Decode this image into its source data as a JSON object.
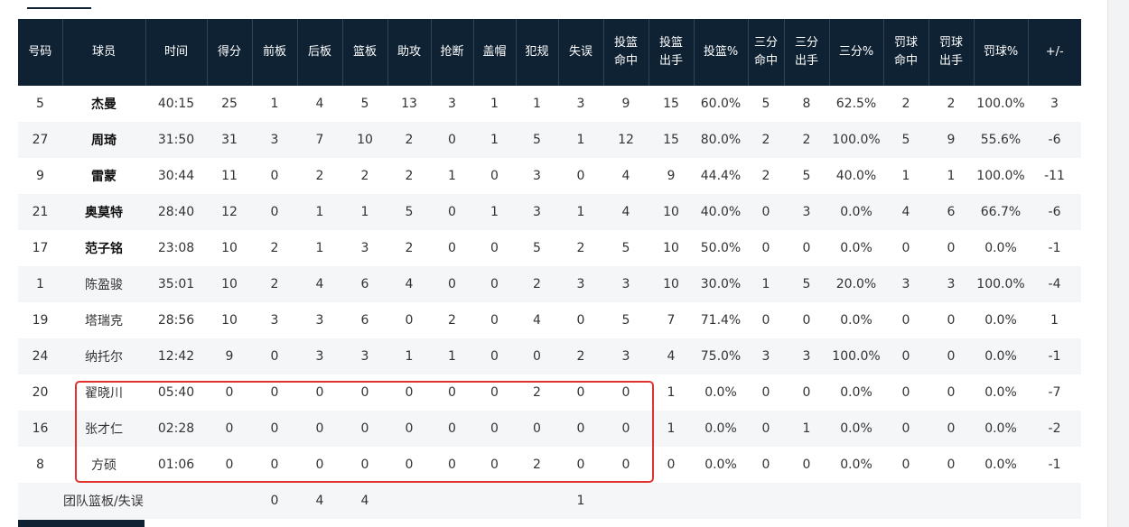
{
  "headers": [
    {
      "line1": "号码",
      "line2": ""
    },
    {
      "line1": "球员",
      "line2": ""
    },
    {
      "line1": "时间",
      "line2": ""
    },
    {
      "line1": "得分",
      "line2": ""
    },
    {
      "line1": "前板",
      "line2": ""
    },
    {
      "line1": "后板",
      "line2": ""
    },
    {
      "line1": "篮板",
      "line2": ""
    },
    {
      "line1": "助攻",
      "line2": ""
    },
    {
      "line1": "抢断",
      "line2": ""
    },
    {
      "line1": "盖帽",
      "line2": ""
    },
    {
      "line1": "犯规",
      "line2": ""
    },
    {
      "line1": "失误",
      "line2": ""
    },
    {
      "line1": "投篮",
      "line2": "命中"
    },
    {
      "line1": "投篮",
      "line2": "出手"
    },
    {
      "line1": "投篮%",
      "line2": ""
    },
    {
      "line1": "三分",
      "line2": "命中"
    },
    {
      "line1": "三分",
      "line2": "出手"
    },
    {
      "line1": "三分%",
      "line2": ""
    },
    {
      "line1": "罚球",
      "line2": "命中"
    },
    {
      "line1": "罚球",
      "line2": "出手"
    },
    {
      "line1": "罚球%",
      "line2": ""
    },
    {
      "line1": "+/-",
      "line2": ""
    }
  ],
  "rows": [
    {
      "starter": true,
      "cells": [
        "5",
        "杰曼",
        "40:15",
        "25",
        "1",
        "4",
        "5",
        "13",
        "3",
        "1",
        "1",
        "3",
        "9",
        "15",
        "60.0%",
        "5",
        "8",
        "62.5%",
        "2",
        "2",
        "100.0%",
        "3"
      ]
    },
    {
      "starter": true,
      "cells": [
        "27",
        "周琦",
        "31:50",
        "31",
        "3",
        "7",
        "10",
        "2",
        "0",
        "1",
        "5",
        "1",
        "12",
        "15",
        "80.0%",
        "2",
        "2",
        "100.0%",
        "5",
        "9",
        "55.6%",
        "-6"
      ]
    },
    {
      "starter": true,
      "cells": [
        "9",
        "雷蒙",
        "30:44",
        "11",
        "0",
        "2",
        "2",
        "2",
        "1",
        "0",
        "3",
        "0",
        "4",
        "9",
        "44.4%",
        "2",
        "5",
        "40.0%",
        "1",
        "1",
        "100.0%",
        "-11"
      ]
    },
    {
      "starter": true,
      "cells": [
        "21",
        "奥莫特",
        "28:40",
        "12",
        "0",
        "1",
        "1",
        "5",
        "0",
        "1",
        "3",
        "1",
        "4",
        "10",
        "40.0%",
        "0",
        "3",
        "0.0%",
        "4",
        "6",
        "66.7%",
        "-6"
      ]
    },
    {
      "starter": true,
      "cells": [
        "17",
        "范子铭",
        "23:08",
        "10",
        "2",
        "1",
        "3",
        "2",
        "0",
        "0",
        "5",
        "2",
        "5",
        "10",
        "50.0%",
        "0",
        "0",
        "0.0%",
        "0",
        "0",
        "0.0%",
        "-1"
      ]
    },
    {
      "starter": false,
      "cells": [
        "1",
        "陈盈骏",
        "35:01",
        "10",
        "2",
        "4",
        "6",
        "4",
        "0",
        "0",
        "2",
        "3",
        "3",
        "10",
        "30.0%",
        "1",
        "5",
        "20.0%",
        "3",
        "3",
        "100.0%",
        "-4"
      ]
    },
    {
      "starter": false,
      "cells": [
        "19",
        "塔瑞克",
        "28:56",
        "10",
        "3",
        "3",
        "6",
        "0",
        "2",
        "0",
        "4",
        "0",
        "5",
        "7",
        "71.4%",
        "0",
        "0",
        "0.0%",
        "0",
        "0",
        "0.0%",
        "1"
      ]
    },
    {
      "starter": false,
      "cells": [
        "24",
        "纳托尔",
        "12:42",
        "9",
        "0",
        "3",
        "3",
        "1",
        "1",
        "0",
        "0",
        "2",
        "3",
        "4",
        "75.0%",
        "3",
        "3",
        "100.0%",
        "0",
        "0",
        "0.0%",
        "-1"
      ]
    },
    {
      "starter": false,
      "cells": [
        "20",
        "翟晓川",
        "05:40",
        "0",
        "0",
        "0",
        "0",
        "0",
        "0",
        "0",
        "2",
        "0",
        "0",
        "1",
        "0.0%",
        "0",
        "0",
        "0.0%",
        "0",
        "0",
        "0.0%",
        "-7"
      ]
    },
    {
      "starter": false,
      "cells": [
        "16",
        "张才仁",
        "02:28",
        "0",
        "0",
        "0",
        "0",
        "0",
        "0",
        "0",
        "0",
        "0",
        "0",
        "1",
        "0.0%",
        "0",
        "1",
        "0.0%",
        "0",
        "0",
        "0.0%",
        "-2"
      ]
    },
    {
      "starter": false,
      "cells": [
        "8",
        "方硕",
        "01:06",
        "0",
        "0",
        "0",
        "0",
        "0",
        "0",
        "0",
        "2",
        "0",
        "0",
        "0",
        "0.0%",
        "0",
        "0",
        "0.0%",
        "0",
        "0",
        "0.0%",
        "-1"
      ]
    }
  ],
  "team_row": {
    "label": "团队篮板/失误",
    "offensive_rebounds": "0",
    "defensive_rebounds": "4",
    "rebounds": "4",
    "turnovers": "1"
  },
  "colors": {
    "header_bg": "#0f2233",
    "highlight_border": "#e0332f",
    "stripe": "#f5f6f8"
  }
}
